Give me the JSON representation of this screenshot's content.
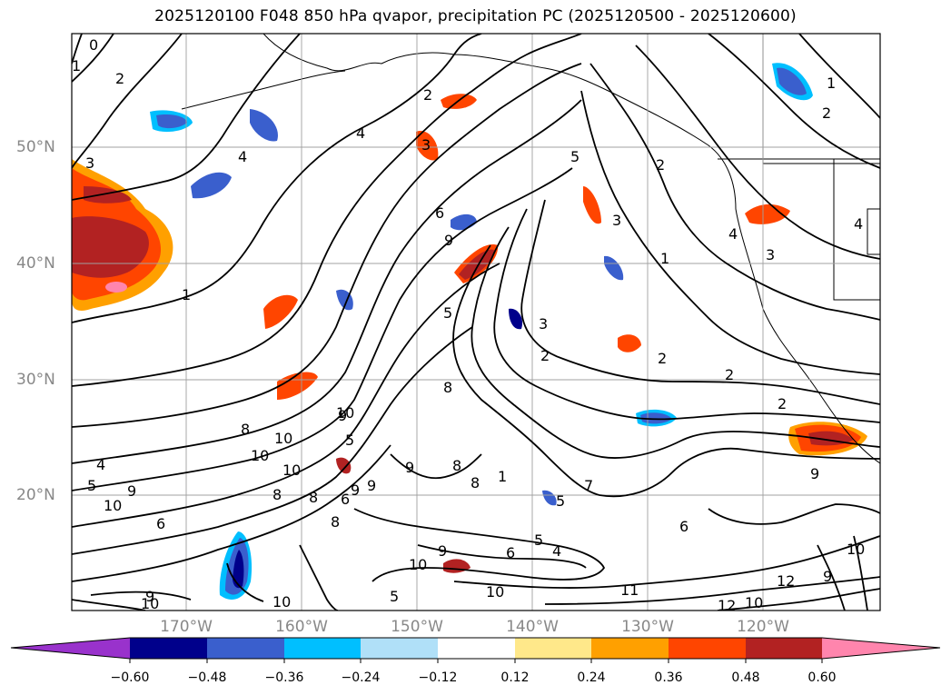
{
  "title": "2025120100 F048 850 hPa qvapor, precipitation PC (2025120500 - 2025120600)",
  "map": {
    "lat_labels": [
      "50°N",
      "40°N",
      "30°N",
      "20°N"
    ],
    "lon_labels": [
      "170°W",
      "160°W",
      "150°W",
      "140°W",
      "130°W",
      "120°W"
    ],
    "contour_labels": [
      "0",
      "1",
      "2",
      "3",
      "4",
      "4",
      "2",
      "3",
      "5",
      "6",
      "9",
      "5",
      "3",
      "1",
      "3",
      "2",
      "2",
      "2",
      "2",
      "8",
      "9",
      "8",
      "8",
      "1",
      "7",
      "6",
      "5",
      "4",
      "9",
      "10",
      "11",
      "10",
      "12",
      "10",
      "12",
      "10",
      "9",
      "10",
      "8",
      "8",
      "9",
      "6",
      "9",
      "10",
      "10",
      "4",
      "5",
      "10",
      "5",
      "9",
      "8",
      "8",
      "9",
      "10",
      "10",
      "6",
      "9",
      "5",
      "6",
      "9",
      "10",
      "4",
      "2",
      "1",
      "2",
      "4",
      "3",
      "5",
      "1"
    ],
    "colors": {
      "pink": "#ff80b0",
      "darkred": "#b22222",
      "red": "#ff4000",
      "orange": "#ffa000",
      "yellow": "#ffe680",
      "lightblue": "#add8f0",
      "blue": "#00bfff",
      "medblue": "#3060d0",
      "navy": "#000080",
      "purple": "#9932cc"
    }
  },
  "colorbar": {
    "ticks": [
      "−0.60",
      "−0.48",
      "−0.36",
      "−0.24",
      "−0.12",
      "0.12",
      "0.24",
      "0.36",
      "0.48",
      "0.60"
    ],
    "colors": [
      "#9932cc",
      "#00008b",
      "#3a5fcd",
      "#00bfff",
      "#b0e0f8",
      "#ffffff",
      "#ffe88a",
      "#ffa000",
      "#ff4500",
      "#b22222",
      "#ff85ad"
    ]
  }
}
